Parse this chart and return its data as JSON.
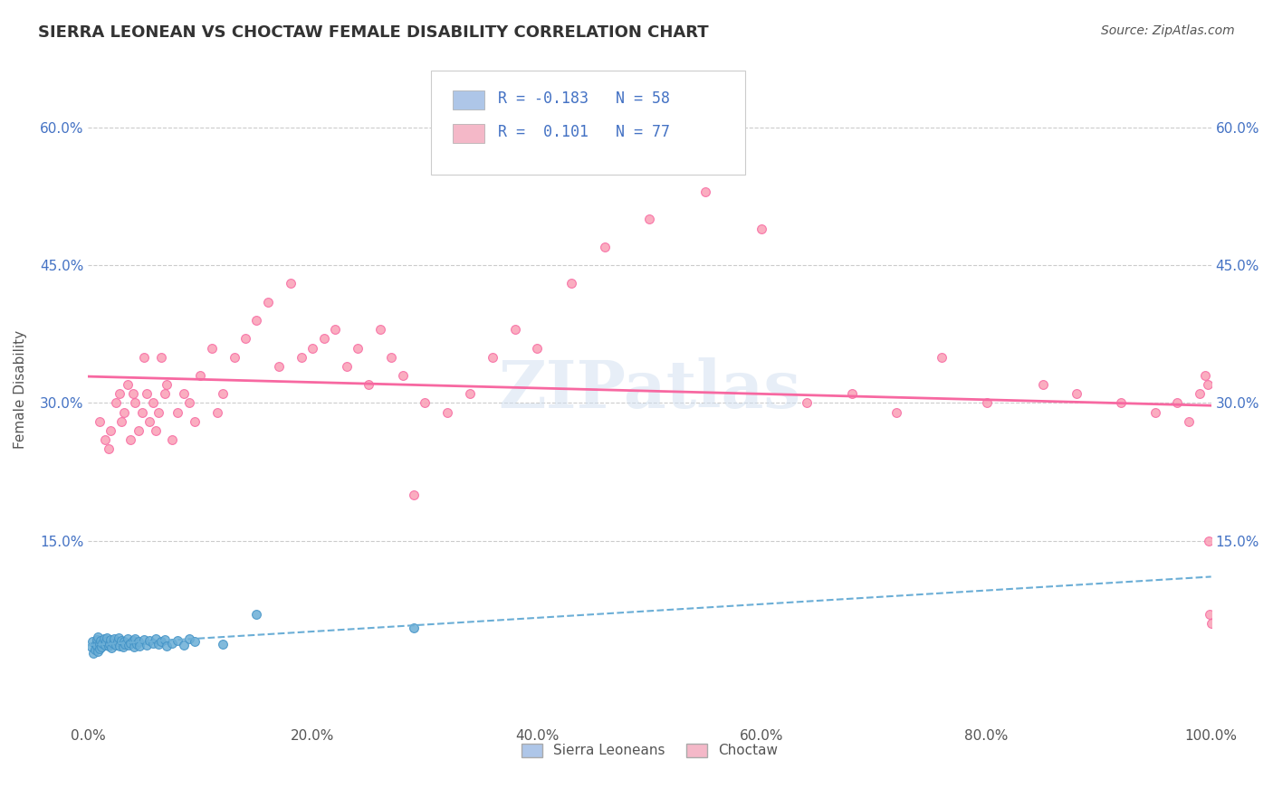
{
  "title": "SIERRA LEONEAN VS CHOCTAW FEMALE DISABILITY CORRELATION CHART",
  "source": "Source: ZipAtlas.com",
  "xlabel": "",
  "ylabel": "Female Disability",
  "xlim": [
    0.0,
    1.0
  ],
  "ylim": [
    -0.05,
    0.68
  ],
  "xticks": [
    0.0,
    0.2,
    0.4,
    0.6,
    0.8,
    1.0
  ],
  "xticklabels": [
    "0.0%",
    "20.0%",
    "40.0%",
    "60.0%",
    "80.0%",
    "100.0%"
  ],
  "yticks_left": [
    0.15,
    0.3,
    0.45,
    0.6
  ],
  "yticklabels_left": [
    "15.0%",
    "30.0%",
    "45.0%",
    "60.0%"
  ],
  "yticks_right": [
    0.15,
    0.3,
    0.45,
    0.6
  ],
  "yticklabels_right": [
    "15.0%",
    "30.0%",
    "45.0%",
    "60.0%"
  ],
  "grid_color": "#cccccc",
  "background_color": "#ffffff",
  "watermark": "ZIPatlas",
  "sierra_color": "#6baed6",
  "sierra_edge": "#4292c6",
  "choctaw_color": "#fa9fb5",
  "choctaw_edge": "#f768a1",
  "sierra_R": -0.183,
  "sierra_N": 58,
  "choctaw_R": 0.101,
  "choctaw_N": 77,
  "legend_sierra_color": "#aec6e8",
  "legend_choctaw_color": "#f4b8c8",
  "tick_color": "#4472c4",
  "sierra_x": [
    0.003,
    0.004,
    0.005,
    0.006,
    0.007,
    0.008,
    0.008,
    0.009,
    0.009,
    0.01,
    0.01,
    0.011,
    0.012,
    0.013,
    0.014,
    0.015,
    0.016,
    0.017,
    0.018,
    0.019,
    0.02,
    0.021,
    0.022,
    0.023,
    0.025,
    0.026,
    0.027,
    0.028,
    0.03,
    0.031,
    0.032,
    0.033,
    0.035,
    0.036,
    0.038,
    0.04,
    0.041,
    0.042,
    0.043,
    0.045,
    0.046,
    0.05,
    0.052,
    0.055,
    0.058,
    0.06,
    0.063,
    0.065,
    0.068,
    0.07,
    0.075,
    0.08,
    0.085,
    0.09,
    0.095,
    0.12,
    0.15,
    0.29
  ],
  "sierra_y": [
    0.035,
    0.04,
    0.028,
    0.032,
    0.038,
    0.042,
    0.036,
    0.03,
    0.045,
    0.038,
    0.033,
    0.041,
    0.035,
    0.039,
    0.043,
    0.037,
    0.04,
    0.044,
    0.036,
    0.038,
    0.042,
    0.034,
    0.039,
    0.043,
    0.037,
    0.04,
    0.044,
    0.036,
    0.041,
    0.035,
    0.04,
    0.038,
    0.043,
    0.037,
    0.039,
    0.041,
    0.035,
    0.043,
    0.038,
    0.04,
    0.036,
    0.042,
    0.037,
    0.041,
    0.039,
    0.043,
    0.038,
    0.04,
    0.042,
    0.036,
    0.039,
    0.041,
    0.037,
    0.043,
    0.04,
    0.038,
    0.07,
    0.055
  ],
  "choctaw_x": [
    0.01,
    0.015,
    0.018,
    0.02,
    0.025,
    0.028,
    0.03,
    0.032,
    0.035,
    0.038,
    0.04,
    0.042,
    0.045,
    0.048,
    0.05,
    0.052,
    0.055,
    0.058,
    0.06,
    0.063,
    0.065,
    0.068,
    0.07,
    0.075,
    0.08,
    0.085,
    0.09,
    0.095,
    0.1,
    0.11,
    0.115,
    0.12,
    0.13,
    0.14,
    0.15,
    0.16,
    0.17,
    0.18,
    0.19,
    0.2,
    0.21,
    0.22,
    0.23,
    0.24,
    0.25,
    0.26,
    0.27,
    0.28,
    0.29,
    0.3,
    0.32,
    0.34,
    0.36,
    0.38,
    0.4,
    0.43,
    0.46,
    0.5,
    0.55,
    0.6,
    0.64,
    0.68,
    0.72,
    0.76,
    0.8,
    0.85,
    0.88,
    0.92,
    0.95,
    0.97,
    0.98,
    0.99,
    0.995,
    0.997,
    0.998,
    0.999,
    1.0
  ],
  "choctaw_y": [
    0.28,
    0.26,
    0.25,
    0.27,
    0.3,
    0.31,
    0.28,
    0.29,
    0.32,
    0.26,
    0.31,
    0.3,
    0.27,
    0.29,
    0.35,
    0.31,
    0.28,
    0.3,
    0.27,
    0.29,
    0.35,
    0.31,
    0.32,
    0.26,
    0.29,
    0.31,
    0.3,
    0.28,
    0.33,
    0.36,
    0.29,
    0.31,
    0.35,
    0.37,
    0.39,
    0.41,
    0.34,
    0.43,
    0.35,
    0.36,
    0.37,
    0.38,
    0.34,
    0.36,
    0.32,
    0.38,
    0.35,
    0.33,
    0.2,
    0.3,
    0.29,
    0.31,
    0.35,
    0.38,
    0.36,
    0.43,
    0.47,
    0.5,
    0.53,
    0.49,
    0.3,
    0.31,
    0.29,
    0.35,
    0.3,
    0.32,
    0.31,
    0.3,
    0.29,
    0.3,
    0.28,
    0.31,
    0.33,
    0.32,
    0.15,
    0.07,
    0.06
  ]
}
